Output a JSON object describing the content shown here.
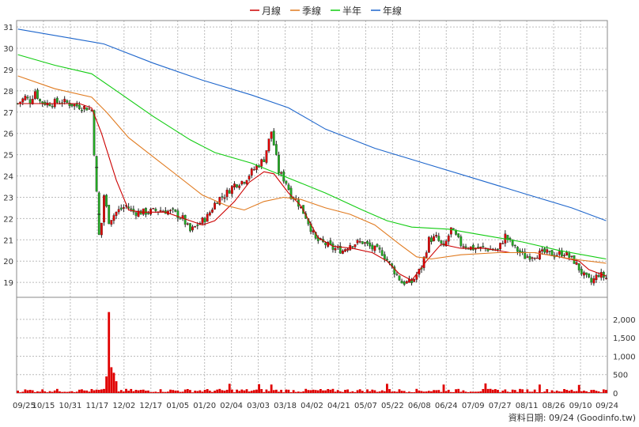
{
  "chart_data": {
    "type": "line",
    "legend": {
      "position": "top-center",
      "items": [
        {
          "name": "月線",
          "color": "#cc0000"
        },
        {
          "name": "季線",
          "color": "#e07a1f"
        },
        {
          "name": "半年",
          "color": "#11cc11"
        },
        {
          "name": "年線",
          "color": "#1e66cc"
        }
      ]
    },
    "price_axis": {
      "range": [
        18.3,
        31.3
      ],
      "ticks": [
        "31",
        "30",
        "29",
        "28",
        "27",
        "26",
        "25",
        "24",
        "23",
        "22",
        "21",
        "20",
        "19"
      ],
      "side": "left"
    },
    "volume_axis": {
      "range": [
        0,
        2600
      ],
      "ticks": [
        "2,000",
        "1,500",
        "1,000",
        "500",
        "0"
      ],
      "side": "right"
    },
    "x_tick_labels": [
      "09/25",
      "10/15",
      "10/31",
      "11/17",
      "12/02",
      "12/17",
      "01/05",
      "01/20",
      "02/04",
      "03/03",
      "03/18",
      "04/02",
      "04/21",
      "05/07",
      "05/22",
      "06/08",
      "06/24",
      "07/09",
      "07/27",
      "08/11",
      "08/26",
      "09/10",
      "09/24"
    ],
    "grid": true,
    "num_sessions": 240,
    "series": [
      {
        "name": "月線",
        "color": "#cc0000",
        "points": [
          [
            0,
            27.4
          ],
          [
            25,
            27.4
          ],
          [
            30,
            27.2
          ],
          [
            34,
            26.0
          ],
          [
            40,
            23.8
          ],
          [
            45,
            22.4
          ],
          [
            50,
            22.3
          ],
          [
            60,
            22.3
          ],
          [
            70,
            21.9
          ],
          [
            75,
            21.7
          ],
          [
            80,
            21.9
          ],
          [
            88,
            22.8
          ],
          [
            94,
            23.7
          ],
          [
            100,
            24.2
          ],
          [
            104,
            24.1
          ],
          [
            110,
            23.2
          ],
          [
            115,
            22.6
          ],
          [
            122,
            21.1
          ],
          [
            128,
            20.7
          ],
          [
            136,
            20.6
          ],
          [
            144,
            20.4
          ],
          [
            150,
            20.0
          ],
          [
            155,
            19.4
          ],
          [
            160,
            19.1
          ],
          [
            166,
            20.0
          ],
          [
            172,
            20.8
          ],
          [
            180,
            20.6
          ],
          [
            190,
            20.6
          ],
          [
            200,
            20.4
          ],
          [
            210,
            20.4
          ],
          [
            220,
            20.2
          ],
          [
            228,
            20.0
          ],
          [
            232,
            19.6
          ],
          [
            239,
            19.3
          ]
        ]
      },
      {
        "name": "季線",
        "color": "#e07a1f",
        "points": [
          [
            0,
            28.7
          ],
          [
            15,
            28.1
          ],
          [
            30,
            27.7
          ],
          [
            36,
            27.0
          ],
          [
            45,
            25.8
          ],
          [
            55,
            24.9
          ],
          [
            65,
            24.0
          ],
          [
            75,
            23.1
          ],
          [
            85,
            22.6
          ],
          [
            92,
            22.4
          ],
          [
            100,
            22.8
          ],
          [
            108,
            23.0
          ],
          [
            115,
            22.9
          ],
          [
            125,
            22.5
          ],
          [
            135,
            22.2
          ],
          [
            145,
            21.7
          ],
          [
            155,
            20.8
          ],
          [
            162,
            20.2
          ],
          [
            168,
            20.1
          ],
          [
            180,
            20.3
          ],
          [
            195,
            20.4
          ],
          [
            210,
            20.4
          ],
          [
            225,
            20.1
          ],
          [
            239,
            19.9
          ]
        ]
      },
      {
        "name": "半年",
        "color": "#11cc11",
        "points": [
          [
            0,
            29.7
          ],
          [
            15,
            29.2
          ],
          [
            30,
            28.8
          ],
          [
            40,
            28.0
          ],
          [
            55,
            26.8
          ],
          [
            70,
            25.7
          ],
          [
            80,
            25.1
          ],
          [
            95,
            24.6
          ],
          [
            110,
            23.9
          ],
          [
            125,
            23.2
          ],
          [
            140,
            22.4
          ],
          [
            150,
            21.9
          ],
          [
            160,
            21.6
          ],
          [
            175,
            21.5
          ],
          [
            190,
            21.2
          ],
          [
            205,
            20.9
          ],
          [
            220,
            20.5
          ],
          [
            239,
            20.1
          ]
        ]
      },
      {
        "name": "年線",
        "color": "#1e66cc",
        "points": [
          [
            0,
            30.9
          ],
          [
            25,
            30.4
          ],
          [
            35,
            30.2
          ],
          [
            55,
            29.3
          ],
          [
            75,
            28.5
          ],
          [
            95,
            27.8
          ],
          [
            110,
            27.2
          ],
          [
            125,
            26.2
          ],
          [
            145,
            25.3
          ],
          [
            165,
            24.6
          ],
          [
            185,
            23.9
          ],
          [
            205,
            23.2
          ],
          [
            225,
            22.5
          ],
          [
            239,
            21.9
          ]
        ]
      }
    ],
    "candles": {
      "up_color": "#e00000",
      "down_color": "#22aa22",
      "close_anchors": [
        [
          0,
          27.4
        ],
        [
          3,
          27.7
        ],
        [
          5,
          27.5
        ],
        [
          7,
          28.0
        ],
        [
          9,
          27.5
        ],
        [
          12,
          27.4
        ],
        [
          18,
          27.5
        ],
        [
          24,
          27.3
        ],
        [
          28,
          27.2
        ],
        [
          30,
          27.1
        ],
        [
          33,
          21.2
        ],
        [
          34,
          21.8
        ],
        [
          35,
          23.1
        ],
        [
          37,
          21.9
        ],
        [
          40,
          22.3
        ],
        [
          44,
          22.6
        ],
        [
          47,
          22.3
        ],
        [
          52,
          22.3
        ],
        [
          58,
          22.4
        ],
        [
          63,
          22.3
        ],
        [
          67,
          22.0
        ],
        [
          70,
          21.4
        ],
        [
          73,
          21.7
        ],
        [
          77,
          22.1
        ],
        [
          81,
          22.9
        ],
        [
          84,
          23.1
        ],
        [
          88,
          23.6
        ],
        [
          92,
          23.8
        ],
        [
          95,
          24.2
        ],
        [
          100,
          24.8
        ],
        [
          103,
          26.1
        ],
        [
          106,
          24.2
        ],
        [
          109,
          23.7
        ],
        [
          111,
          23.1
        ],
        [
          113,
          22.9
        ],
        [
          117,
          22.1
        ],
        [
          121,
          21.0
        ],
        [
          125,
          20.8
        ],
        [
          128,
          20.6
        ],
        [
          132,
          20.5
        ],
        [
          135,
          20.8
        ],
        [
          140,
          20.9
        ],
        [
          144,
          20.6
        ],
        [
          148,
          20.4
        ],
        [
          152,
          19.7
        ],
        [
          156,
          19.0
        ],
        [
          160,
          19.0
        ],
        [
          164,
          19.7
        ],
        [
          167,
          21.0
        ],
        [
          170,
          21.1
        ],
        [
          173,
          20.6
        ],
        [
          176,
          21.5
        ],
        [
          180,
          20.8
        ],
        [
          185,
          20.6
        ],
        [
          190,
          20.6
        ],
        [
          195,
          20.5
        ],
        [
          198,
          21.2
        ],
        [
          202,
          20.6
        ],
        [
          206,
          20.2
        ],
        [
          210,
          20.3
        ],
        [
          214,
          20.4
        ],
        [
          218,
          20.3
        ],
        [
          222,
          20.4
        ],
        [
          226,
          20.0
        ],
        [
          230,
          19.3
        ],
        [
          233,
          19.0
        ],
        [
          236,
          19.4
        ],
        [
          239,
          19.2
        ]
      ],
      "gap_marks": [
        [
          32,
          24.4
        ],
        [
          33,
          22.2
        ]
      ]
    },
    "volume": {
      "color": "#e00000",
      "baseline": 60,
      "spikes": [
        [
          37,
          2200
        ],
        [
          38,
          700
        ],
        [
          39,
          550
        ],
        [
          36,
          450
        ],
        [
          40,
          320
        ],
        [
          25,
          90
        ],
        [
          86,
          250
        ],
        [
          98,
          240
        ],
        [
          103,
          230
        ],
        [
          150,
          250
        ],
        [
          173,
          230
        ],
        [
          190,
          260
        ],
        [
          212,
          230
        ],
        [
          228,
          220
        ]
      ]
    }
  },
  "footer": {
    "source": "資料日期: 09/24  (Goodinfo.tw)"
  }
}
